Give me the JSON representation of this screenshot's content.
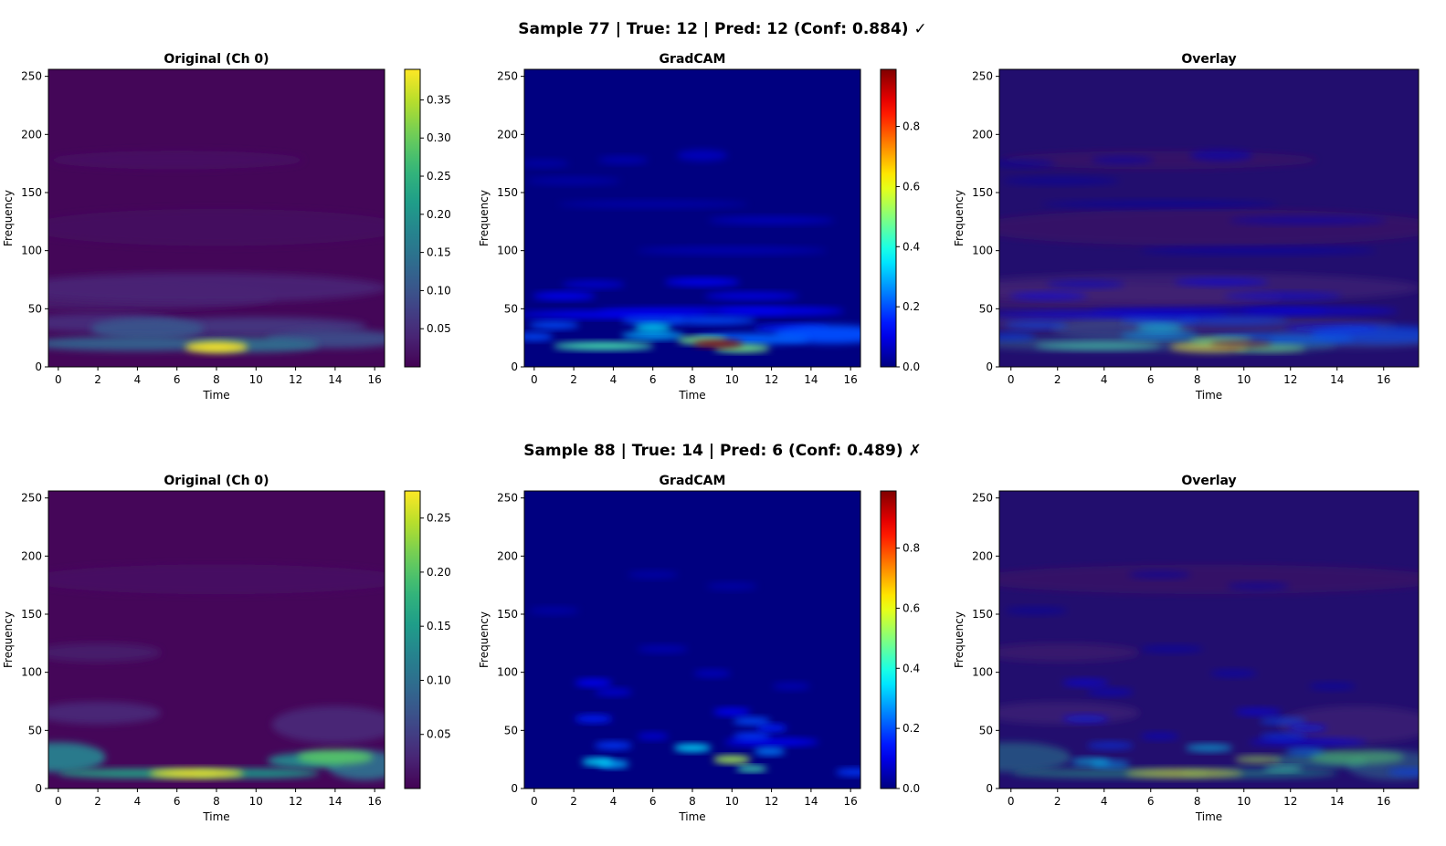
{
  "chart_data": [
    {
      "type": "heatmap",
      "row_title": "Sample 77 | True: 12 | Pred: 12 (Conf: 0.884) ✓",
      "panels": [
        {
          "title": "Original (Ch 0)",
          "colormap": "viridis",
          "xlabel": "Time",
          "ylabel": "Frequency",
          "xlim": [
            -0.5,
            16.5
          ],
          "ylim": [
            0,
            256
          ],
          "xticks": [
            0,
            2,
            4,
            6,
            8,
            10,
            12,
            14,
            16
          ],
          "yticks": [
            0,
            50,
            100,
            150,
            200,
            250
          ],
          "colorbar": {
            "min": 0.0,
            "max": 0.39,
            "ticks": [
              "0.05",
              "0.10",
              "0.15",
              "0.20",
              "0.25",
              "0.30",
              "0.35"
            ],
            "tick_values": [
              0.05,
              0.1,
              0.15,
              0.2,
              0.25,
              0.3,
              0.35
            ]
          },
          "background": 0.005,
          "blobs": [
            {
              "t": 8,
              "f": 17,
              "st": 1.0,
              "sf": 3,
              "v": 0.39
            },
            {
              "t": 4,
              "f": 20,
              "st": 3.5,
              "sf": 4,
              "v": 0.12
            },
            {
              "t": 10,
              "f": 19,
              "st": 2.0,
              "sf": 4,
              "v": 0.14
            },
            {
              "t": 14,
              "f": 24,
              "st": 2.2,
              "sf": 5,
              "v": 0.09
            },
            {
              "t": 4.5,
              "f": 33,
              "st": 1.8,
              "sf": 6,
              "v": 0.1
            },
            {
              "t": 10,
              "f": 35,
              "st": 3.5,
              "sf": 5,
              "v": 0.06
            },
            {
              "t": 2,
              "f": 38,
              "st": 2.5,
              "sf": 5,
              "v": 0.05
            },
            {
              "t": 7,
              "f": 68,
              "st": 6,
              "sf": 8,
              "v": 0.04
            },
            {
              "t": 3,
              "f": 60,
              "st": 5,
              "sf": 7,
              "v": 0.03
            },
            {
              "t": 8,
              "f": 120,
              "st": 6,
              "sf": 10,
              "v": 0.015
            },
            {
              "t": 6,
              "f": 178,
              "st": 4,
              "sf": 5,
              "v": 0.018
            }
          ]
        },
        {
          "title": "GradCAM",
          "colormap": "jet",
          "xlabel": "Time",
          "ylabel": "Frequency",
          "xlim": [
            -0.5,
            16.5
          ],
          "ylim": [
            0,
            256
          ],
          "xticks": [
            0,
            2,
            4,
            6,
            8,
            10,
            12,
            14,
            16
          ],
          "yticks": [
            0,
            50,
            100,
            150,
            200,
            250
          ],
          "colorbar": {
            "min": 0.0,
            "max": 0.99,
            "ticks": [
              "0.0",
              "0.2",
              "0.4",
              "0.6",
              "0.8"
            ],
            "tick_values": [
              0.0,
              0.2,
              0.4,
              0.6,
              0.8
            ]
          },
          "background": 0.0,
          "blobs": [
            {
              "t": 9.3,
              "f": 20,
              "st": 0.8,
              "sf": 2,
              "v": 0.99
            },
            {
              "t": 10.5,
              "f": 16,
              "st": 0.9,
              "sf": 2,
              "v": 0.5
            },
            {
              "t": 3.5,
              "f": 18,
              "st": 1.6,
              "sf": 2,
              "v": 0.45
            },
            {
              "t": 8.5,
              "f": 23,
              "st": 0.8,
              "sf": 2,
              "v": 0.5
            },
            {
              "t": 6,
              "f": 34,
              "st": 0.6,
              "sf": 2,
              "v": 0.35
            },
            {
              "t": 6,
              "f": 27,
              "st": 1.0,
              "sf": 2,
              "v": 0.3
            },
            {
              "t": 6,
              "f": 40,
              "st": 1.0,
              "sf": 2,
              "v": 0.2
            },
            {
              "t": 1,
              "f": 36,
              "st": 0.8,
              "sf": 2,
              "v": 0.2
            },
            {
              "t": 0,
              "f": 26,
              "st": 0.6,
              "sf": 2,
              "v": 0.2
            },
            {
              "t": 9,
              "f": 40,
              "st": 1.4,
              "sf": 2,
              "v": 0.2
            },
            {
              "t": 15,
              "f": 28,
              "st": 1.8,
              "sf": 5,
              "v": 0.2
            },
            {
              "t": 13,
              "f": 33,
              "st": 1.2,
              "sf": 2,
              "v": 0.15
            },
            {
              "t": 11,
              "f": 24,
              "st": 1.8,
              "sf": 3,
              "v": 0.22
            },
            {
              "t": 4,
              "f": 45,
              "st": 3.0,
              "sf": 2,
              "v": 0.12
            },
            {
              "t": 8,
              "f": 48,
              "st": 3.0,
              "sf": 2,
              "v": 0.1
            },
            {
              "t": 12.5,
              "f": 48,
              "st": 2.0,
              "sf": 2,
              "v": 0.12
            },
            {
              "t": 1.5,
              "f": 61,
              "st": 1.0,
              "sf": 2,
              "v": 0.12
            },
            {
              "t": 8.5,
              "f": 73,
              "st": 1.2,
              "sf": 2,
              "v": 0.12
            },
            {
              "t": 11,
              "f": 61,
              "st": 1.5,
              "sf": 2,
              "v": 0.1
            },
            {
              "t": 3,
              "f": 71,
              "st": 1.0,
              "sf": 2,
              "v": 0.08
            },
            {
              "t": 12,
              "f": 126,
              "st": 2.0,
              "sf": 2,
              "v": 0.06
            },
            {
              "t": 8.5,
              "f": 182,
              "st": 0.8,
              "sf": 3,
              "v": 0.06
            },
            {
              "t": 4.5,
              "f": 178,
              "st": 0.8,
              "sf": 2,
              "v": 0.05
            },
            {
              "t": 0.5,
              "f": 175,
              "st": 0.8,
              "sf": 2,
              "v": 0.04
            },
            {
              "t": 2,
              "f": 160,
              "st": 1.5,
              "sf": 2,
              "v": 0.04
            },
            {
              "t": 10,
              "f": 100,
              "st": 3.0,
              "sf": 2,
              "v": 0.05
            },
            {
              "t": 6,
              "f": 140,
              "st": 3.0,
              "sf": 2,
              "v": 0.04
            }
          ]
        },
        {
          "title": "Overlay",
          "colormap": "overlay",
          "xlabel": "Time",
          "ylabel": "Frequency",
          "xlim": [
            -0.5,
            17.5
          ],
          "ylim": [
            0,
            256
          ],
          "xticks": [
            0,
            2,
            4,
            6,
            8,
            10,
            12,
            14,
            16
          ],
          "yticks": [
            0,
            50,
            100,
            150,
            200,
            250
          ],
          "colorbar": null,
          "background": 0.0,
          "blobs": []
        }
      ]
    },
    {
      "type": "heatmap",
      "row_title": "Sample 88 | True: 14 | Pred: 6 (Conf: 0.489) ✗",
      "panels": [
        {
          "title": "Original (Ch 0)",
          "colormap": "viridis",
          "xlabel": "Time",
          "ylabel": "Frequency",
          "xlim": [
            -0.5,
            16.5
          ],
          "ylim": [
            0,
            256
          ],
          "xticks": [
            0,
            2,
            4,
            6,
            8,
            10,
            12,
            14,
            16
          ],
          "yticks": [
            0,
            50,
            100,
            150,
            200,
            250
          ],
          "colorbar": {
            "min": 0.0,
            "max": 0.275,
            "ticks": [
              "0.05",
              "0.10",
              "0.15",
              "0.20",
              "0.25"
            ],
            "tick_values": [
              0.05,
              0.1,
              0.15,
              0.2,
              0.25
            ]
          },
          "background": 0.004,
          "blobs": [
            {
              "t": 7,
              "f": 13,
              "st": 1.5,
              "sf": 2.5,
              "v": 0.27
            },
            {
              "t": 4,
              "f": 13,
              "st": 2.5,
              "sf": 2.5,
              "v": 0.16
            },
            {
              "t": 10,
              "f": 13,
              "st": 2.0,
              "sf": 2.5,
              "v": 0.15
            },
            {
              "t": 14,
              "f": 27,
              "st": 1.2,
              "sf": 4,
              "v": 0.2
            },
            {
              "t": 12.5,
              "f": 24,
              "st": 1.2,
              "sf": 4,
              "v": 0.13
            },
            {
              "t": 0,
              "f": 27,
              "st": 1.5,
              "sf": 8,
              "v": 0.12
            },
            {
              "t": 15.5,
              "f": 20,
              "st": 1.2,
              "sf": 8,
              "v": 0.1
            },
            {
              "t": 2,
              "f": 65,
              "st": 2,
              "sf": 6,
              "v": 0.03
            },
            {
              "t": 14,
              "f": 55,
              "st": 2,
              "sf": 10,
              "v": 0.03
            },
            {
              "t": 2,
              "f": 117,
              "st": 2,
              "sf": 5,
              "v": 0.02
            },
            {
              "t": 8,
              "f": 180,
              "st": 6,
              "sf": 8,
              "v": 0.012
            }
          ]
        },
        {
          "title": "GradCAM",
          "colormap": "jet",
          "xlabel": "Time",
          "ylabel": "Frequency",
          "xlim": [
            -0.5,
            16.5
          ],
          "ylim": [
            0,
            256
          ],
          "xticks": [
            0,
            2,
            4,
            6,
            8,
            10,
            12,
            14,
            16
          ],
          "yticks": [
            0,
            50,
            100,
            150,
            200,
            250
          ],
          "colorbar": {
            "min": 0.0,
            "max": 0.99,
            "ticks": [
              "0.0",
              "0.2",
              "0.4",
              "0.6",
              "0.8"
            ],
            "tick_values": [
              0.0,
              0.2,
              0.4,
              0.6,
              0.8
            ]
          },
          "background": 0.0,
          "blobs": [
            {
              "t": 10,
              "f": 25,
              "st": 0.6,
              "sf": 2,
              "v": 0.55
            },
            {
              "t": 3.2,
              "f": 23,
              "st": 0.5,
              "sf": 2,
              "v": 0.35
            },
            {
              "t": 4.0,
              "f": 21,
              "st": 0.5,
              "sf": 2,
              "v": 0.3
            },
            {
              "t": 8,
              "f": 35,
              "st": 0.6,
              "sf": 2,
              "v": 0.35
            },
            {
              "t": 11,
              "f": 17,
              "st": 0.5,
              "sf": 1.5,
              "v": 0.45
            },
            {
              "t": 11.9,
              "f": 32,
              "st": 0.5,
              "sf": 2,
              "v": 0.25
            },
            {
              "t": 11,
              "f": 58,
              "st": 0.6,
              "sf": 2,
              "v": 0.2
            },
            {
              "t": 11,
              "f": 45,
              "st": 0.6,
              "sf": 2,
              "v": 0.18
            },
            {
              "t": 12,
              "f": 52,
              "st": 0.5,
              "sf": 2,
              "v": 0.15
            },
            {
              "t": 4,
              "f": 37,
              "st": 0.6,
              "sf": 2,
              "v": 0.18
            },
            {
              "t": 3,
              "f": 60,
              "st": 0.6,
              "sf": 2,
              "v": 0.15
            },
            {
              "t": 3,
              "f": 91,
              "st": 0.6,
              "sf": 2,
              "v": 0.12
            },
            {
              "t": 10,
              "f": 66,
              "st": 0.6,
              "sf": 2,
              "v": 0.12
            },
            {
              "t": 12,
              "f": 40,
              "st": 1.5,
              "sf": 2,
              "v": 0.12
            },
            {
              "t": 16.2,
              "f": 14,
              "st": 0.6,
              "sf": 2,
              "v": 0.18
            },
            {
              "t": 6,
              "f": 45,
              "st": 0.5,
              "sf": 2,
              "v": 0.08
            },
            {
              "t": 4,
              "f": 83,
              "st": 0.6,
              "sf": 2,
              "v": 0.08
            },
            {
              "t": 9,
              "f": 99,
              "st": 0.6,
              "sf": 2,
              "v": 0.06
            },
            {
              "t": 13,
              "f": 88,
              "st": 0.6,
              "sf": 2,
              "v": 0.05
            },
            {
              "t": 6.5,
              "f": 120,
              "st": 0.8,
              "sf": 2,
              "v": 0.05
            },
            {
              "t": 6,
              "f": 184,
              "st": 0.8,
              "sf": 2,
              "v": 0.04
            },
            {
              "t": 10,
              "f": 174,
              "st": 0.8,
              "sf": 2,
              "v": 0.04
            },
            {
              "t": 1,
              "f": 153,
              "st": 0.8,
              "sf": 2,
              "v": 0.04
            }
          ]
        },
        {
          "title": "Overlay",
          "colormap": "overlay",
          "xlabel": "Time",
          "ylabel": "Frequency",
          "xlim": [
            -0.5,
            17.5
          ],
          "ylim": [
            0,
            256
          ],
          "xticks": [
            0,
            2,
            4,
            6,
            8,
            10,
            12,
            14,
            16
          ],
          "yticks": [
            0,
            50,
            100,
            150,
            200,
            250
          ],
          "colorbar": null,
          "background": 0.0,
          "blobs": []
        }
      ]
    }
  ]
}
